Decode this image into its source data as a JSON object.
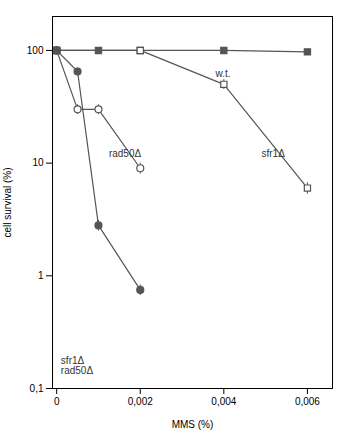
{
  "chart_data": {
    "type": "line",
    "xlabel": "MMS (%)",
    "ylabel": "cell survival (%)",
    "log": "y",
    "grid": false,
    "xlim": [
      -0.0001,
      0.0066
    ],
    "ylim": [
      0.1,
      200
    ],
    "xticks": [
      0,
      {
        "value": 0.002,
        "label": "0,002"
      },
      {
        "value": 0.004,
        "label": "0,004"
      },
      {
        "value": 0.006,
        "label": "0,006"
      }
    ],
    "yticks": [
      {
        "value": 0.1,
        "label": "0,1"
      },
      1,
      10,
      100
    ],
    "series": [
      {
        "x": [
          0,
          0.001,
          0.002,
          0.004,
          0.006
        ],
        "values": [
          100,
          100,
          100,
          100,
          97
        ],
        "errors": [
          0,
          0,
          0,
          0,
          0.5
        ],
        "marker": "square",
        "color": "#555555"
      },
      {
        "x": [
          0,
          0.002,
          0.004,
          0.006
        ],
        "values": [
          100,
          100,
          50,
          6
        ],
        "errors": [
          0,
          0,
          5,
          0.7
        ],
        "marker": "open_square",
        "color": "#555555"
      },
      {
        "x": [
          0,
          0.0005,
          0.001,
          0.002
        ],
        "values": [
          100,
          30,
          30,
          9
        ],
        "errors": [
          0,
          3,
          3,
          1
        ],
        "marker": "open_circle",
        "color": "#555555"
      },
      {
        "x": [
          0,
          0.0005,
          0.001,
          0.002
        ],
        "values": [
          100,
          65,
          2.8,
          0.75
        ],
        "errors": [
          0,
          5,
          0.3,
          0.08
        ],
        "marker": "circle",
        "color": "#555555"
      }
    ],
    "annotations": [
      {
        "x": 0.0038,
        "y": 62,
        "text": "w.t.",
        "color": "#333333"
      },
      {
        "x": 0.0049,
        "y": 12,
        "text": "sfr1Δ",
        "color": "#333333"
      },
      {
        "x": 0.00125,
        "y": 12,
        "text": "rad50Δ",
        "color": "#333333"
      },
      {
        "x": 0.0001,
        "y": 0.19,
        "text": "sfr1Δ\nrad50Δ",
        "color": "#333333"
      }
    ]
  }
}
